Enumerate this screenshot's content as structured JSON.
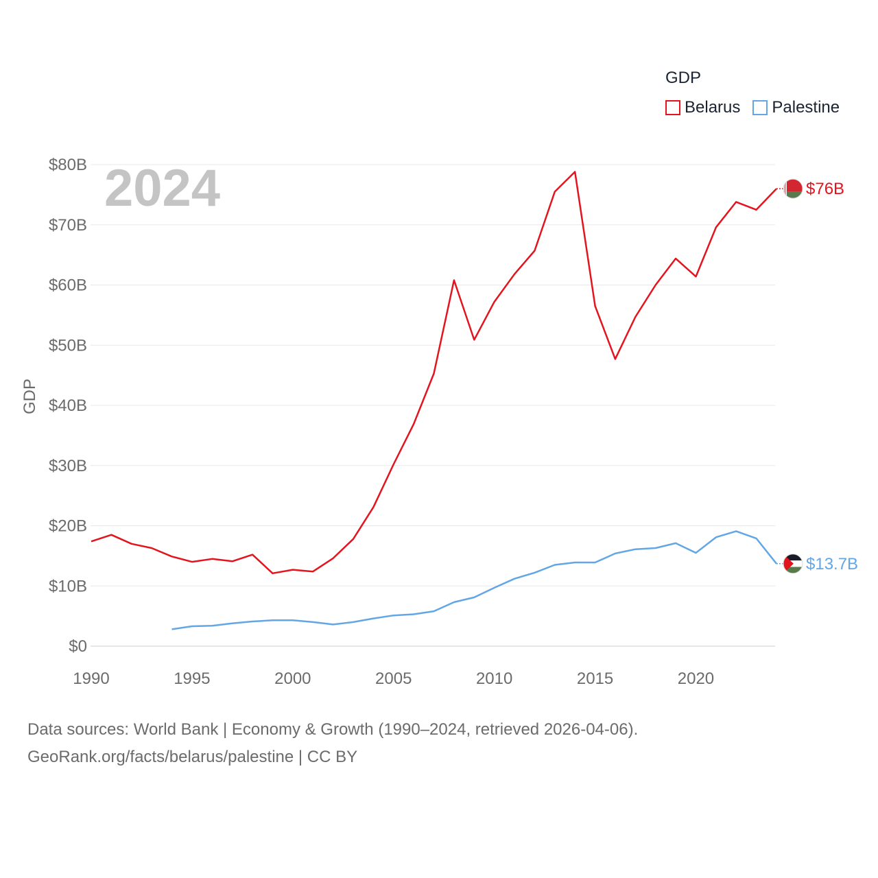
{
  "chart_data": {
    "type": "line",
    "title": "",
    "year_label": "2024",
    "ylabel": "GDP",
    "xlabel": "",
    "xlim": [
      1990,
      2024
    ],
    "ylim": [
      0,
      80
    ],
    "x_ticks": [
      "1990",
      "1995",
      "2000",
      "2005",
      "2010",
      "2015",
      "2020"
    ],
    "y_ticks": [
      "$0",
      "$10B",
      "$20B",
      "$30B",
      "$40B",
      "$50B",
      "$60B",
      "$70B",
      "$80B"
    ],
    "legend_title": "GDP",
    "units": "billions USD",
    "series": [
      {
        "name": "Belarus",
        "color": "#e3141d",
        "end_label": "$76B",
        "flag": "belarus-flag",
        "x": [
          1990,
          1991,
          1992,
          1993,
          1994,
          1995,
          1996,
          1997,
          1998,
          1999,
          2000,
          2001,
          2002,
          2003,
          2004,
          2005,
          2006,
          2007,
          2008,
          2009,
          2010,
          2011,
          2012,
          2013,
          2014,
          2015,
          2016,
          2017,
          2018,
          2019,
          2020,
          2021,
          2022,
          2023,
          2024
        ],
        "values": [
          17.4,
          18.5,
          17.0,
          16.3,
          14.9,
          14.0,
          14.5,
          14.1,
          15.2,
          12.1,
          12.7,
          12.4,
          14.6,
          17.8,
          23.1,
          30.2,
          36.9,
          45.3,
          60.8,
          50.9,
          57.2,
          61.8,
          65.7,
          75.5,
          78.8,
          56.5,
          47.7,
          54.7,
          60.0,
          64.4,
          61.4,
          69.6,
          73.8,
          72.5,
          76.0
        ]
      },
      {
        "name": "Palestine",
        "color": "#62a6e5",
        "end_label": "$13.7B",
        "flag": "palestine-flag",
        "x": [
          1994,
          1995,
          1996,
          1997,
          1998,
          1999,
          2000,
          2001,
          2002,
          2003,
          2004,
          2005,
          2006,
          2007,
          2008,
          2009,
          2010,
          2011,
          2012,
          2013,
          2014,
          2015,
          2016,
          2017,
          2018,
          2019,
          2020,
          2021,
          2022,
          2023,
          2024
        ],
        "values": [
          2.8,
          3.3,
          3.4,
          3.8,
          4.1,
          4.3,
          4.3,
          4.0,
          3.6,
          4.0,
          4.6,
          5.1,
          5.3,
          5.8,
          7.3,
          8.1,
          9.7,
          11.2,
          12.2,
          13.5,
          13.9,
          13.9,
          15.4,
          16.1,
          16.3,
          17.1,
          15.5,
          18.1,
          19.1,
          17.9,
          13.7
        ]
      }
    ]
  },
  "footer": {
    "sources": "Data sources: World Bank | Economy & Growth (1990–2024, retrieved 2026-04-06).",
    "link": "GeoRank.org/facts/belarus/palestine",
    "license": " | CC BY"
  }
}
